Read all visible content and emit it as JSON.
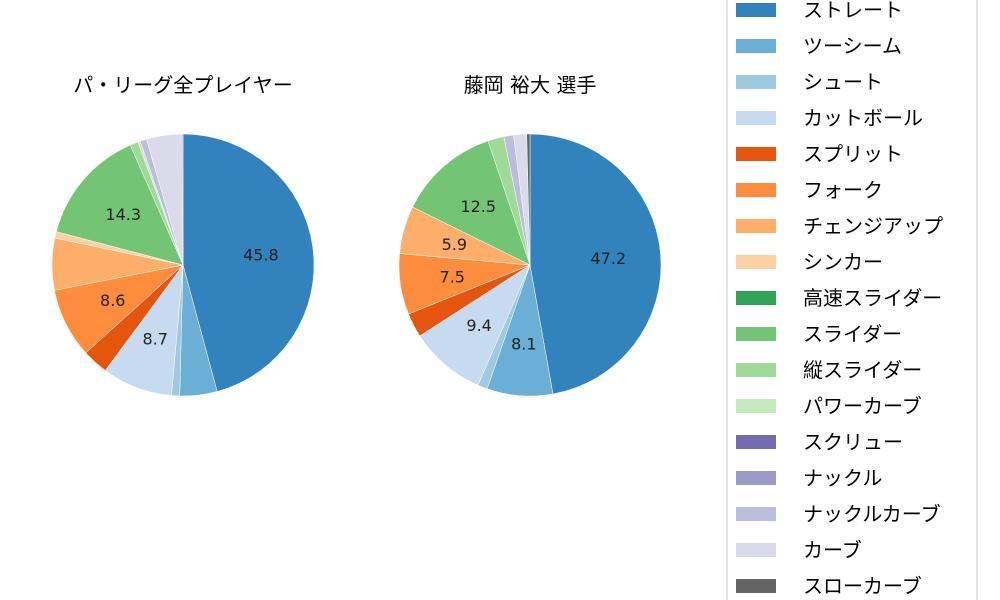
{
  "chart_data": {
    "type": "pie",
    "legend": {
      "placement": "right",
      "entries": [
        "ストレート",
        "ツーシーム",
        "シュート",
        "カットボール",
        "スプリット",
        "フォーク",
        "チェンジアップ",
        "シンカー",
        "高速スライダー",
        "スライダー",
        "縦スライダー",
        "パワーカーブ",
        "スクリュー",
        "ナックル",
        "ナックルカーブ",
        "カーブ",
        "スローカーブ"
      ],
      "colors": [
        "#3182bd",
        "#6baed6",
        "#9ecae1",
        "#c6dbef",
        "#e6550d",
        "#fd8d3c",
        "#fdae6b",
        "#fdd0a2",
        "#31a354",
        "#74c476",
        "#a1d99b",
        "#c7e9c0",
        "#756bb1",
        "#9e9ac8",
        "#bcbddc",
        "#dadaeb",
        "#636363"
      ]
    },
    "pies": [
      {
        "title": "パ・リーグ全プレイヤー",
        "values": [
          45.8,
          4.6,
          1.0,
          8.7,
          3.2,
          8.6,
          6.4,
          0.8,
          0,
          14.3,
          1.0,
          0.3,
          0,
          0,
          0.8,
          4.4,
          0.1
        ],
        "labels": [
          "45.8",
          "",
          "",
          "8.7",
          "",
          "8.6",
          "",
          "",
          "",
          "14.3",
          "",
          "",
          "",
          "",
          "",
          "",
          ""
        ]
      },
      {
        "title": "藤岡 裕大  選手",
        "values": [
          47.2,
          8.1,
          1.2,
          9.4,
          3.0,
          7.5,
          5.9,
          0,
          0,
          12.5,
          2.0,
          0,
          0,
          0,
          1.2,
          1.6,
          0.4
        ],
        "labels": [
          "47.2",
          "8.1",
          "",
          "9.4",
          "",
          "7.5",
          "5.9",
          "",
          "",
          "12.5",
          "",
          "",
          "",
          "",
          "",
          "",
          ""
        ]
      }
    ]
  }
}
